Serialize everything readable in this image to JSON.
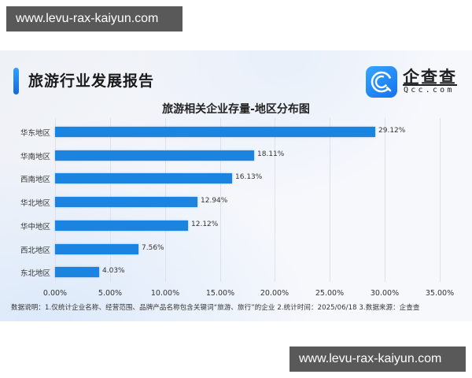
{
  "watermark": {
    "top_text": "www.levu-rax-kaiyun.com",
    "bottom_text": "www.levu-rax-kaiyun.com"
  },
  "header": {
    "report_title": "旅游行业发展报告",
    "brand_name": "企查查",
    "brand_domain": "Qcc.com",
    "logo_icon": "qcc-logo-icon"
  },
  "colors": {
    "bar": "#1a84e0",
    "accent": "#1f7ff0",
    "gridline": "#dde2ea"
  },
  "chart_data": {
    "type": "bar",
    "orientation": "horizontal",
    "title": "旅游相关企业存量-地区分布图",
    "categories": [
      "华东地区",
      "华南地区",
      "西南地区",
      "华北地区",
      "华中地区",
      "西北地区",
      "东北地区"
    ],
    "values": [
      29.12,
      18.11,
      16.13,
      12.94,
      12.12,
      7.56,
      4.03
    ],
    "value_labels": [
      "29.12%",
      "18.11%",
      "16.13%",
      "12.94%",
      "12.12%",
      "7.56%",
      "4.03%"
    ],
    "xlabel": "",
    "ylabel": "",
    "xlim": [
      0,
      35
    ],
    "x_ticks": [
      "0.00%",
      "5.00%",
      "10.00%",
      "15.00%",
      "20.00%",
      "25.00%",
      "30.00%",
      "35.00%"
    ],
    "grid": "vertical",
    "legend": "none",
    "note": "数据说明：1.仅统计企业名称、经营范围、品牌产品名称包含关键词“旅游、旅行”的企业  2.统计时间：2025/06/18   3.数据来源：企查查"
  }
}
